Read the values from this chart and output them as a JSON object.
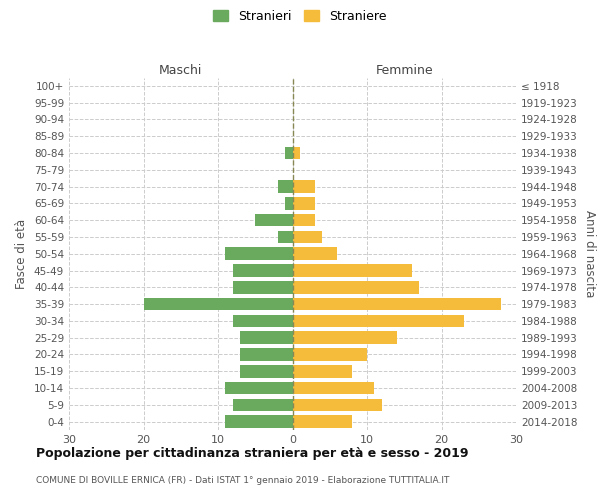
{
  "age_groups": [
    "100+",
    "95-99",
    "90-94",
    "85-89",
    "80-84",
    "75-79",
    "70-74",
    "65-69",
    "60-64",
    "55-59",
    "50-54",
    "45-49",
    "40-44",
    "35-39",
    "30-34",
    "25-29",
    "20-24",
    "15-19",
    "10-14",
    "5-9",
    "0-4"
  ],
  "birth_years": [
    "≤ 1918",
    "1919-1923",
    "1924-1928",
    "1929-1933",
    "1934-1938",
    "1939-1943",
    "1944-1948",
    "1949-1953",
    "1954-1958",
    "1959-1963",
    "1964-1968",
    "1969-1973",
    "1974-1978",
    "1979-1983",
    "1984-1988",
    "1989-1993",
    "1994-1998",
    "1999-2003",
    "2004-2008",
    "2009-2013",
    "2014-2018"
  ],
  "maschi": [
    0,
    0,
    0,
    0,
    1,
    0,
    2,
    1,
    5,
    2,
    9,
    8,
    8,
    20,
    8,
    7,
    7,
    7,
    9,
    8,
    9
  ],
  "femmine": [
    0,
    0,
    0,
    0,
    1,
    0,
    3,
    3,
    3,
    4,
    6,
    16,
    17,
    28,
    23,
    14,
    10,
    8,
    11,
    12,
    8
  ],
  "maschi_color": "#6aaa5f",
  "femmine_color": "#f5bb3b",
  "title": "Popolazione per cittadinanza straniera per età e sesso - 2019",
  "subtitle": "COMUNE DI BOVILLE ERNICA (FR) - Dati ISTAT 1° gennaio 2019 - Elaborazione TUTTITALIA.IT",
  "legend_maschi": "Stranieri",
  "legend_femmine": "Straniere",
  "xlabel_left": "Maschi",
  "xlabel_right": "Femmine",
  "ylabel_left": "Fasce di età",
  "ylabel_right": "Anni di nascita",
  "xlim": 30,
  "background_color": "#ffffff",
  "grid_color": "#cccccc"
}
